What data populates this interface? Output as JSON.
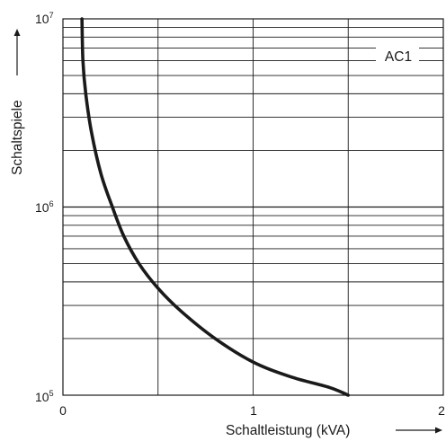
{
  "chart_data": {
    "type": "line",
    "xlabel": "Schaltleistung (kVA)",
    "ylabel": "Schaltspiele",
    "x_ticks": [
      "0",
      "1",
      "2"
    ],
    "y_ticks": [
      {
        "base": "10",
        "exp": "5"
      },
      {
        "base": "10",
        "exp": "6"
      },
      {
        "base": "10",
        "exp": "7"
      }
    ],
    "xlim": [
      0,
      2
    ],
    "ylim": [
      100000,
      10000000
    ],
    "y_scale": "log",
    "grid": true,
    "colors": {
      "curve": "#1a1a1a",
      "grid": "#1a1a1a"
    },
    "series": [
      {
        "name": "AC1",
        "x": [
          0.1,
          0.105,
          0.12,
          0.15,
          0.2,
          0.26,
          0.32,
          0.4,
          0.5,
          0.62,
          0.8,
          1.0,
          1.2,
          1.4,
          1.5
        ],
        "y": [
          10000000,
          6000000,
          4000000,
          2500000,
          1500000,
          1000000,
          700000,
          500000,
          370000,
          280000,
          200000,
          150000,
          125000,
          110000,
          100000
        ]
      }
    ]
  }
}
